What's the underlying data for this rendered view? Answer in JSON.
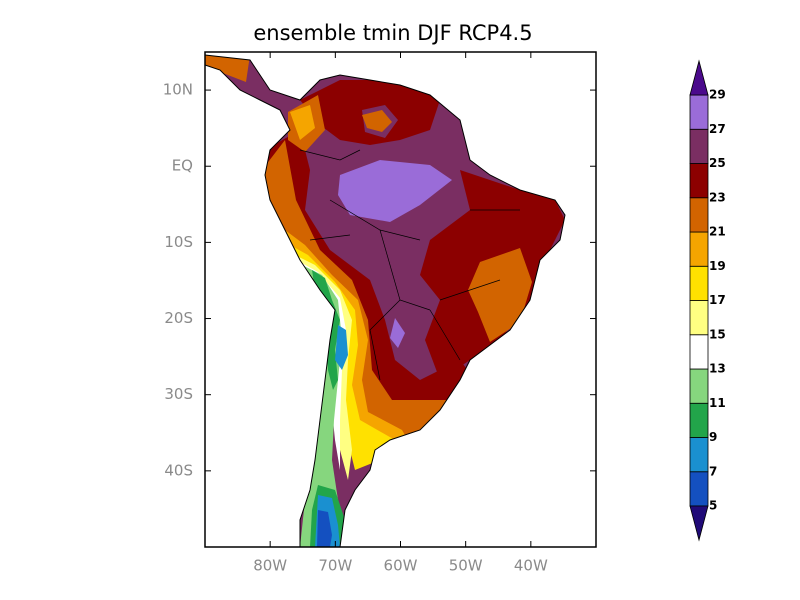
{
  "chart_data": {
    "type": "map",
    "title": "ensemble tmin DJF RCP4.5",
    "xlim": [
      -90,
      -30
    ],
    "ylim": [
      -50,
      15
    ],
    "xticks": [
      {
        "value": -80,
        "label": "80W"
      },
      {
        "value": -70,
        "label": "70W"
      },
      {
        "value": -60,
        "label": "60W"
      },
      {
        "value": -50,
        "label": "50W"
      },
      {
        "value": -40,
        "label": "40W"
      }
    ],
    "yticks": [
      {
        "value": 10,
        "label": "10N"
      },
      {
        "value": 0,
        "label": "EQ"
      },
      {
        "value": -10,
        "label": "10S"
      },
      {
        "value": -20,
        "label": "20S"
      },
      {
        "value": -30,
        "label": "30S"
      },
      {
        "value": -40,
        "label": "40S"
      }
    ],
    "colorbar": {
      "levels": [
        5,
        7,
        9,
        11,
        13,
        15,
        17,
        19,
        21,
        23,
        25,
        27,
        29
      ],
      "colors": [
        "#200a78",
        "#1450c0",
        "#1a90d0",
        "#22a54a",
        "#86d67e",
        "#ffffff",
        "#ffff82",
        "#ffe100",
        "#f5a500",
        "#d26400",
        "#8c0000",
        "#7a2e62",
        "#9a6cd8",
        "#4b0a8c"
      ]
    }
  }
}
